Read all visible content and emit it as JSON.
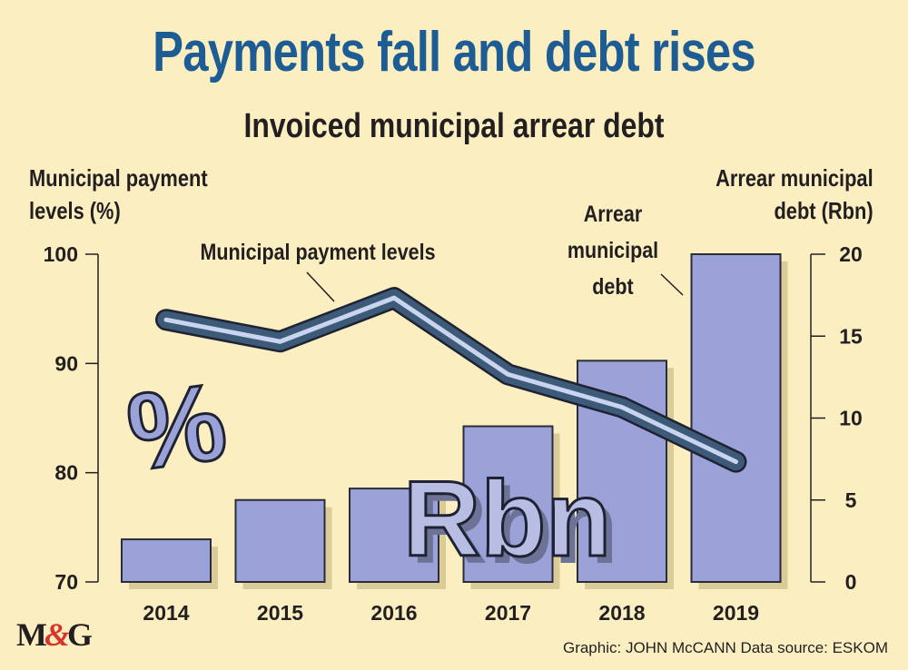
{
  "title": "Payments fall and debt rises",
  "subtitle": "Invoiced municipal arrear debt",
  "left_axis_title": [
    "Municipal payment",
    "levels (%)"
  ],
  "right_axis_title": [
    "Arrear municipal",
    "debt (Rbn)"
  ],
  "credit": "Graphic: JOHN McCANN  Data source: ESKOM",
  "logo": {
    "m": "M",
    "amp": "&",
    "g": "G"
  },
  "decorations": {
    "percent_symbol": "%",
    "rbn_symbol": "Rbn"
  },
  "colors": {
    "background": "#fbefc2",
    "title": "#1e5c94",
    "bar_fill": "#9aa2d8",
    "bar_shadow": "#d9cc98",
    "line_outer": "#3d5a78",
    "line_inner": "#c9d4ef"
  },
  "chart_data": {
    "type": "bar+line",
    "categories": [
      "2014",
      "2015",
      "2016",
      "2017",
      "2018",
      "2019"
    ],
    "bar_series": {
      "name": "Arrear municipal debt",
      "axis": "right",
      "values": [
        2.6,
        5.0,
        5.7,
        9.5,
        13.5,
        20.0
      ]
    },
    "line_series": {
      "name": "Municipal payment levels",
      "axis": "left",
      "values": [
        94,
        92,
        96,
        89,
        86,
        81
      ]
    },
    "left_axis": {
      "label": "Municipal payment levels (%)",
      "ylim": [
        70,
        100
      ],
      "ticks": [
        70,
        80,
        90,
        100
      ]
    },
    "right_axis": {
      "label": "Arrear municipal debt (Rbn)",
      "ylim": [
        0,
        20
      ],
      "ticks": [
        0,
        5,
        10,
        15,
        20
      ]
    },
    "annotations": [
      {
        "text": [
          "Municipal payment levels"
        ],
        "points_to": "line_series"
      },
      {
        "text": [
          "Arrear",
          "municipal",
          "debt"
        ],
        "points_to": "bar_series"
      }
    ]
  }
}
